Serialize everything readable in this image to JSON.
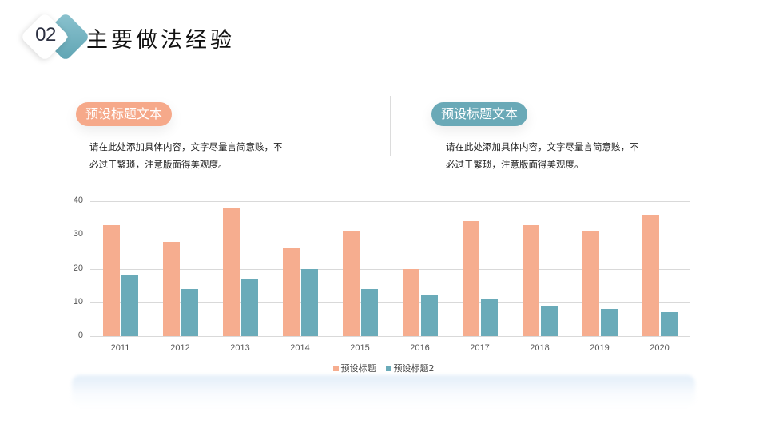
{
  "header": {
    "section_number": "02",
    "title": "主要做法经验"
  },
  "blocks": [
    {
      "pill_label": "预设标题文本",
      "pill_color": "#f6a98a",
      "description_line1": "请在此处添加具体内容，文字尽量言简意赅，不",
      "description_line2": "必过于繁琐，注意版面得美观度。"
    },
    {
      "pill_label": "预设标题文本",
      "pill_color": "#6aa9b7",
      "description_line1": "请在此处添加具体内容，文字尽量言简意赅，不",
      "description_line2": "必过于繁琐，注意版面得美观度。"
    }
  ],
  "colors": {
    "accent_orange": "#f6a98a",
    "accent_teal": "#6aa9b7"
  },
  "chart_data": {
    "type": "bar",
    "title": "",
    "xlabel": "",
    "ylabel": "",
    "categories": [
      "2011",
      "2012",
      "2013",
      "2014",
      "2015",
      "2016",
      "2017",
      "2018",
      "2019",
      "2020"
    ],
    "series": [
      {
        "name": "预设标题",
        "color": "#f6ad8f",
        "values": [
          33,
          28,
          38,
          26,
          31,
          20,
          34,
          33,
          31,
          36
        ]
      },
      {
        "name": "预设标题2",
        "color": "#6aabb9",
        "values": [
          18,
          14,
          17,
          20,
          14,
          12,
          11,
          9,
          8,
          7
        ]
      }
    ],
    "ylim": [
      0,
      40
    ],
    "yticks": [
      "0",
      "10",
      "20",
      "30",
      "40"
    ],
    "grid": true,
    "legend_position": "bottom"
  }
}
